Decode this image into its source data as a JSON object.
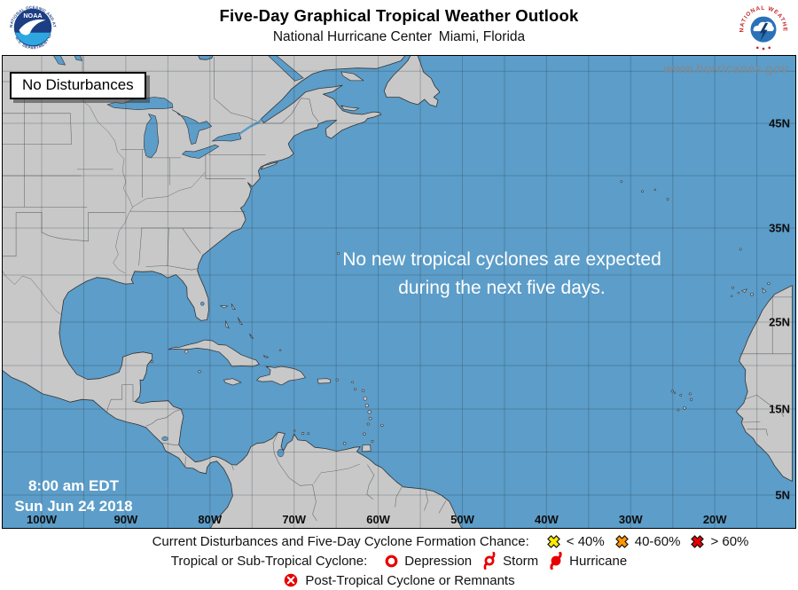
{
  "header": {
    "title": "Five-Day Graphical Tropical Weather Outlook",
    "subtitle": "National Hurricane Center Miami, Florida",
    "noaa_logo": {
      "ring_top": "NATIONAL OCEANIC AND ATMOSPHERIC ADMINISTRATION",
      "ring_bottom": "U.S. DEPARTMENT OF COMMERCE",
      "center": "NOAA"
    },
    "nws_logo": {
      "ring": "NATIONAL WEATHER SERVICE"
    }
  },
  "map": {
    "status_label": "No Disturbances",
    "watermark": "www.hurricanes.gov",
    "message_line1": "No new tropical cyclones are expected",
    "message_line2": "during the next five days.",
    "issued_time": "8:00 am EDT",
    "issued_date": "Sun Jun 24 2018",
    "lat_labels": [
      {
        "text": "45N",
        "lat": 45
      },
      {
        "text": "35N",
        "lat": 35
      },
      {
        "text": "25N",
        "lat": 25
      },
      {
        "text": "15N",
        "lat": 15
      },
      {
        "text": "5N",
        "lat": 5
      }
    ],
    "lon_labels": [
      {
        "text": "100W",
        "lon": -100
      },
      {
        "text": "90W",
        "lon": -90
      },
      {
        "text": "80W",
        "lon": -80
      },
      {
        "text": "70W",
        "lon": -70
      },
      {
        "text": "60W",
        "lon": -60
      },
      {
        "text": "50W",
        "lon": -50
      },
      {
        "text": "40W",
        "lon": -40
      },
      {
        "text": "30W",
        "lon": -30
      },
      {
        "text": "20W",
        "lon": -20
      }
    ],
    "colors": {
      "ocean": "#5C9DC9",
      "land": "#C8C8C8",
      "coast": "#333333",
      "border": "#555555",
      "grid": "rgba(40,58,70,0.28)",
      "label": "#0d0d0d"
    }
  },
  "legend": {
    "row1": {
      "label": "Current Disturbances and Five-Day Cyclone Formation Chance:",
      "items": [
        {
          "symbol": "x-marker-yellow",
          "color": "#FFEB00",
          "label": "< 40%"
        },
        {
          "symbol": "x-marker-orange",
          "color": "#FF9800",
          "label": "40-60%"
        },
        {
          "symbol": "x-marker-red",
          "color": "#E80000",
          "label": "> 60%"
        }
      ]
    },
    "row2": {
      "label": "Tropical or Sub-Tropical Cyclone:",
      "items": [
        {
          "symbol": "depression-icon",
          "label": "Depression"
        },
        {
          "symbol": "storm-icon",
          "label": "Storm"
        },
        {
          "symbol": "hurricane-icon",
          "label": "Hurricane"
        }
      ]
    },
    "row3": {
      "label": "Post-Tropical Cyclone or Remnants"
    },
    "cyclone_red": "#E80000"
  }
}
